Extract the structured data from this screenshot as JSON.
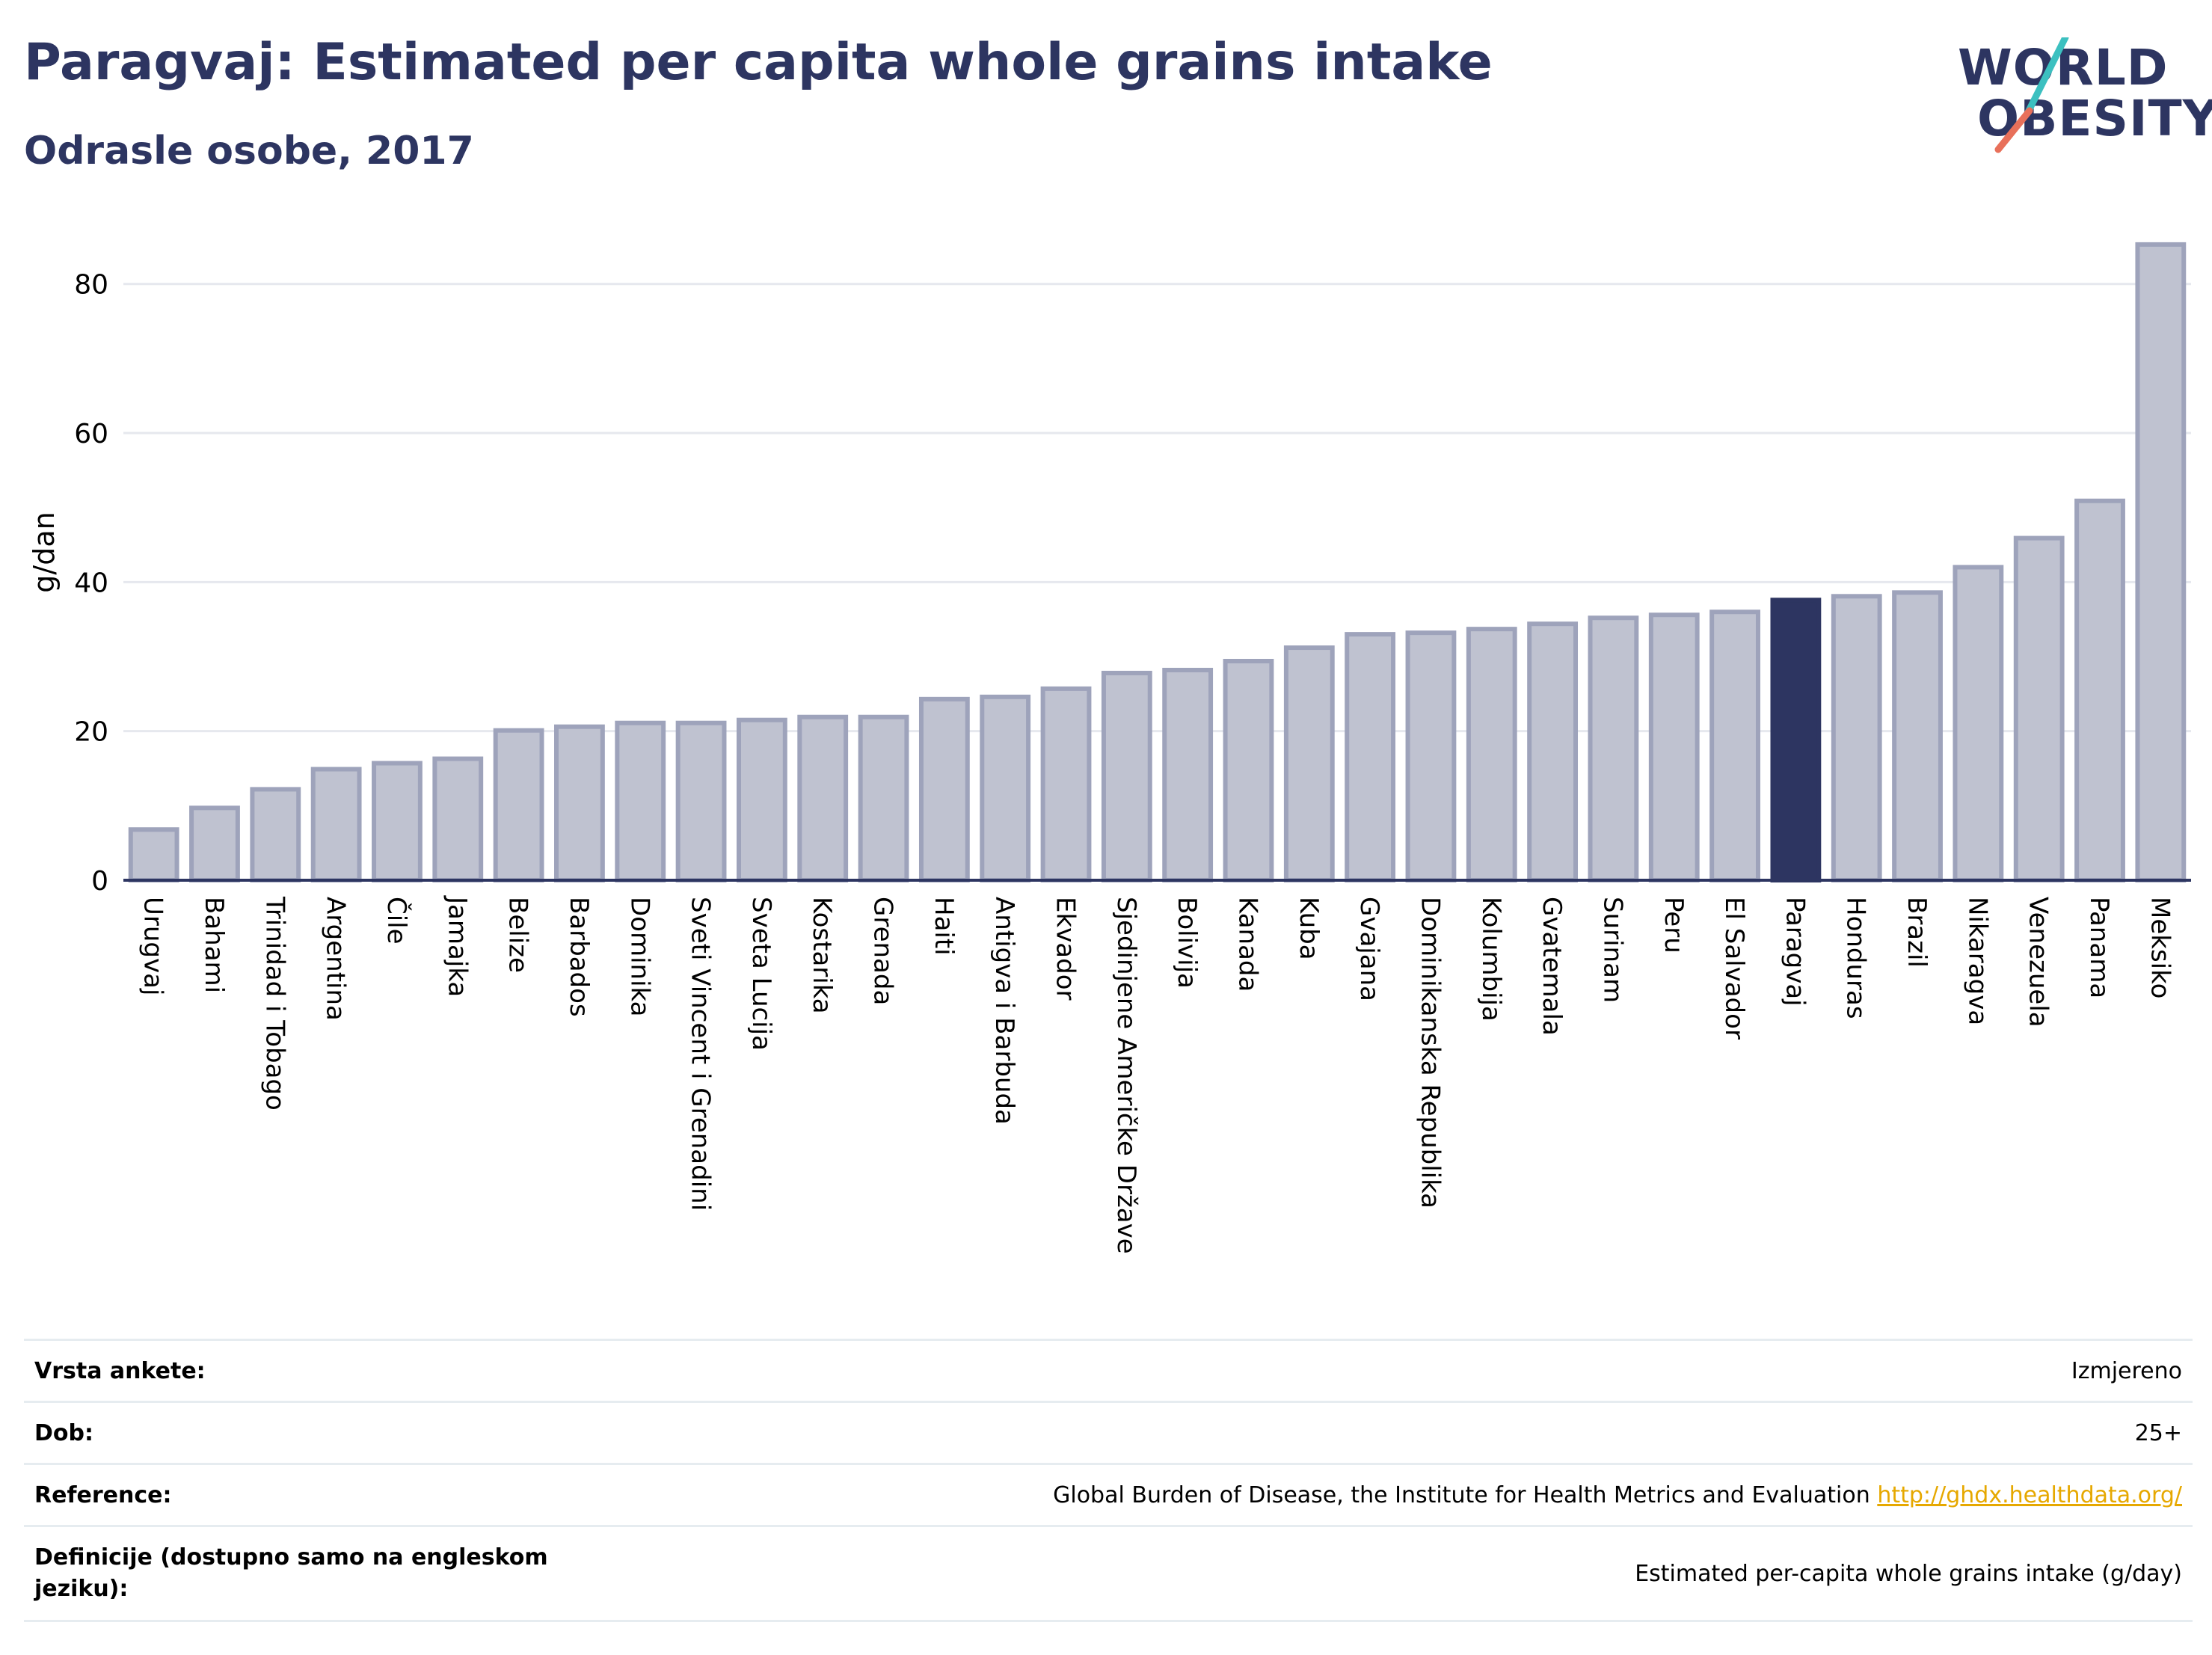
{
  "header": {
    "title": "Paragvaj: Estimated per capita whole grains intake",
    "subtitle": "Odrasle osobe, 2017"
  },
  "logo": {
    "line1": "WORLD",
    "line2": "OBESITY",
    "slash_colors": [
      "#3cc0c0",
      "#e8705a"
    ]
  },
  "colors": {
    "bar": "#bfc2d0",
    "bar_stroke": "#9ea3bb",
    "highlight": "#2d3561",
    "grid": "#e6e8ee",
    "axis": "#2d3561"
  },
  "chart_data": {
    "type": "bar",
    "title": "Paragvaj: Estimated per capita whole grains intake",
    "subtitle": "Odrasle osobe, 2017",
    "xlabel": "",
    "ylabel": "g/dan",
    "ylim": [
      0,
      88
    ],
    "yticks": [
      0,
      20,
      40,
      60,
      80
    ],
    "grid": true,
    "highlight": "Paragvaj",
    "categories": [
      "Urugvaj",
      "Bahami",
      "Trinidad i Tobago",
      "Argentina",
      "Čile",
      "Jamajka",
      "Belize",
      "Barbados",
      "Dominika",
      "Sveti Vincent i Grenadini",
      "Sveta Lucija",
      "Kostarika",
      "Grenada",
      "Haiti",
      "Antigva i Barbuda",
      "Ekvador",
      "Sjedinjene Američke Države",
      "Bolivija",
      "Kanada",
      "Kuba",
      "Gvajana",
      "Dominikanska Republika",
      "Kolumbija",
      "Gvatemala",
      "Surinam",
      "Peru",
      "El Salvador",
      "Paragvaj",
      "Honduras",
      "Brazil",
      "Nikaragva",
      "Venezuela",
      "Panama",
      "Meksiko"
    ],
    "values": [
      6.8,
      9.7,
      12.2,
      14.9,
      15.7,
      16.3,
      20.1,
      20.6,
      21.1,
      21.1,
      21.5,
      21.9,
      21.9,
      24.3,
      24.6,
      25.7,
      27.8,
      28.2,
      29.4,
      31.2,
      33.0,
      33.2,
      33.7,
      34.4,
      35.2,
      35.6,
      36.0,
      37.6,
      38.1,
      38.6,
      42.0,
      45.9,
      50.9,
      85.3
    ]
  },
  "meta": {
    "rows": [
      {
        "label": "Vrsta ankete:",
        "value": "Izmjereno"
      },
      {
        "label": "Dob:",
        "value": "25+"
      },
      {
        "label": "Reference:",
        "value": "Global Burden of Disease, the Institute for Health Metrics and Evaluation",
        "link": "http://ghdx.healthdata.org/"
      },
      {
        "label": "Definicije (dostupno samo na engleskom jeziku):",
        "value": "Estimated per-capita whole grains intake (g/day)"
      }
    ]
  }
}
